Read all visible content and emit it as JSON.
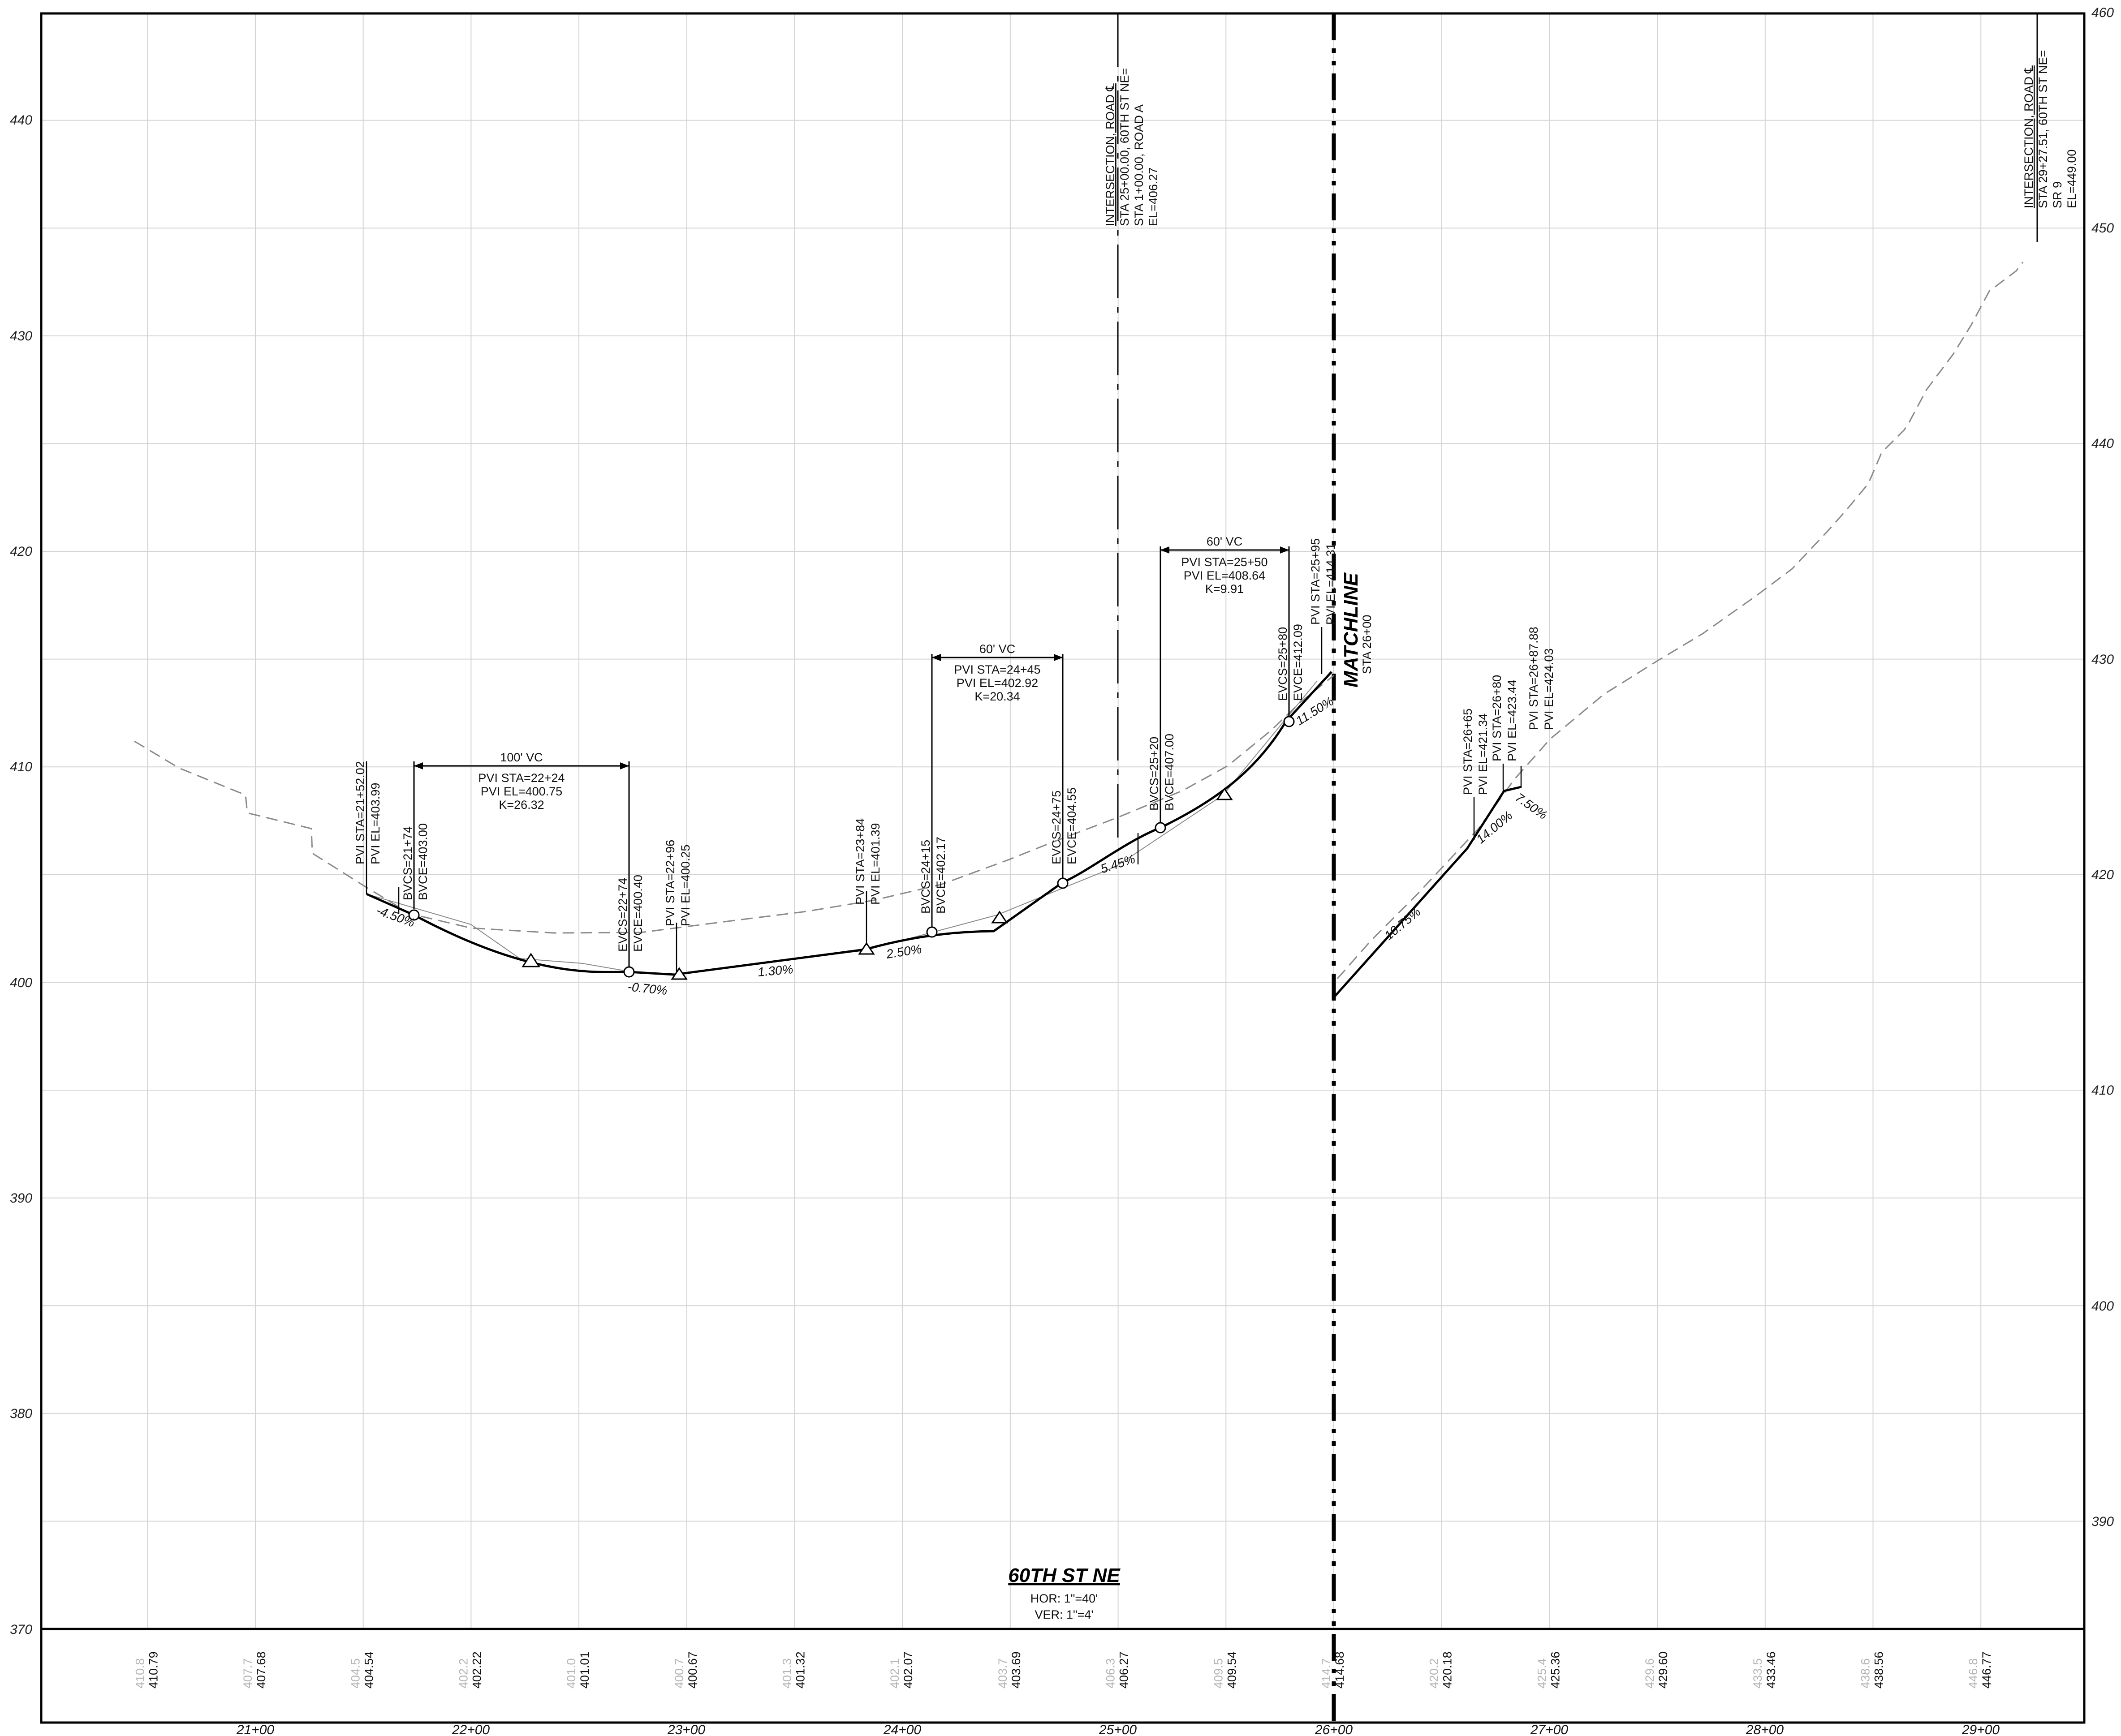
{
  "profile_title": "60TH ST NE",
  "scale": {
    "hor": "HOR:  1\"=40'",
    "ver": "VER:  1\"=4'"
  },
  "left_axis_labels": [
    "370",
    "380",
    "390",
    "400",
    "410",
    "420",
    "430",
    "440"
  ],
  "right_axis_labels": [
    "390",
    "400",
    "410",
    "420",
    "430",
    "440",
    "450",
    "460"
  ],
  "station_labels": [
    "21+00",
    "22+00",
    "23+00",
    "24+00",
    "25+00",
    "26+00",
    "27+00",
    "28+00",
    "29+00"
  ],
  "ground_elevations": [
    "410.8",
    "407.7",
    "404.5",
    "402.2",
    "401.0",
    "400.7",
    "401.3",
    "402.1",
    "403.7",
    "406.3",
    "409.5",
    "414.7",
    "420.2",
    "425.4",
    "429.6",
    "433.5",
    "438.6",
    "446.8"
  ],
  "profile_elevations": [
    "410.79",
    "407.68",
    "404.54",
    "402.22",
    "401.01",
    "400.67",
    "401.32",
    "402.07",
    "403.69",
    "406.27",
    "409.54",
    "414.68",
    "420.18",
    "425.36",
    "429.60",
    "433.46",
    "438.56",
    "446.77"
  ],
  "matchline": {
    "label": "MATCHLINE",
    "station": "STA 26+00"
  },
  "intersections": [
    {
      "title": "INTERSECTION, ROAD ℄",
      "lines": [
        "STA 25+00.00, 60TH ST NE=",
        "STA 1+00.00, ROAD A",
        "EL=406.27"
      ]
    },
    {
      "title": "INTERSECTION, ROAD ℄",
      "lines": [
        "STA 29+27.51, 60TH ST NE=",
        "SR 9",
        "EL=449.00"
      ]
    }
  ],
  "vertical_curves": [
    {
      "length": "100' VC",
      "pvi_sta": "PVI  STA=22+24",
      "pvi_el": "PVI  EL=400.75",
      "k": "K=26.32"
    },
    {
      "length": "60' VC",
      "pvi_sta": "PVI  STA=24+45",
      "pvi_el": "PVI  EL=402.92",
      "k": "K=20.34"
    },
    {
      "length": "60' VC",
      "pvi_sta": "PVI  STA=25+50",
      "pvi_el": "PVI  EL=408.64",
      "k": "K=9.91"
    }
  ],
  "point_labels": [
    [
      "PVI  STA=21+52.02",
      "PVI  EL=403.99"
    ],
    [
      "BVCS=21+74",
      "BVCE=403.00"
    ],
    [
      "EVCS=22+74",
      "EVCE=400.40"
    ],
    [
      "PVI  STA=22+96",
      "PVI  EL=400.25"
    ],
    [
      "PVI  STA=23+84",
      "PVI  EL=401.39"
    ],
    [
      "BVCS=24+15",
      "BVCE=402.17"
    ],
    [
      "EVCS=24+75",
      "EVCE=404.55"
    ],
    [
      "BVCS=25+20",
      "BVCE=407.00"
    ],
    [
      "EVCS=25+80",
      "EVCE=412.09"
    ],
    [
      "PVI  STA=25+95",
      "PVI  EL=414.31"
    ],
    [
      "PVI  STA=26+65",
      "PVI  EL=421.34"
    ],
    [
      "PVI  STA=26+80",
      "PVI  EL=423.44"
    ],
    [
      "PVI  STA=26+87.88",
      "PVI  EL=424.03"
    ]
  ],
  "grades": [
    "-4.50%",
    "-0.70%",
    "1.30%",
    "2.50%",
    "5.45%",
    "11.50%",
    "10.75%",
    "14.00%",
    "7.50%"
  ],
  "colors": {
    "line": "#000000",
    "ground": "#8a8a8a",
    "grid": "#d4d4d4",
    "ground_text": "#b5b5b5"
  }
}
